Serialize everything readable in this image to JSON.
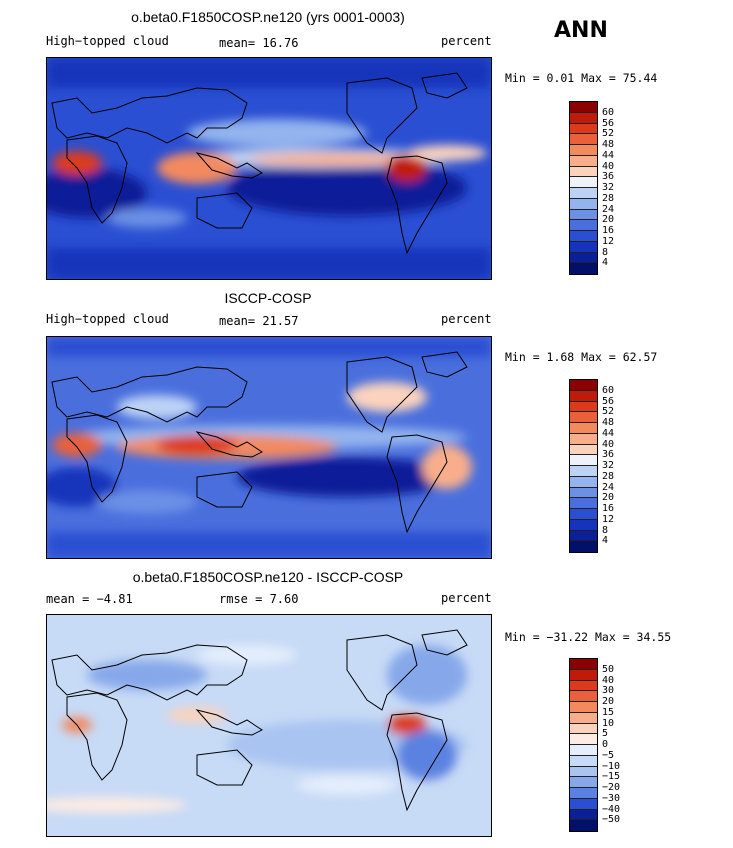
{
  "season": "ANN",
  "units": "percent",
  "panels": [
    {
      "title": "o.beta0.F1850COSP.ne120 (yrs 0001-0003)",
      "left_label": "High−topped cloud",
      "mean_text": "mean=  16.76",
      "right_label": "percent",
      "minmax_text": "Min =    0.01 Max =  75.44",
      "levels": [
        "60",
        "56",
        "52",
        "48",
        "44",
        "40",
        "36",
        "32",
        "28",
        "24",
        "20",
        "16",
        "12",
        "8",
        "4"
      ],
      "colors": [
        "#8b0000",
        "#c01b0a",
        "#dc3a1a",
        "#e9603a",
        "#f38a5e",
        "#f8ae8b",
        "#fbd3bd",
        "#eef2fb",
        "#bdd3f5",
        "#93b4ee",
        "#6b90e6",
        "#4a6fdd",
        "#2b4fd2",
        "#1634bb",
        "#0a1f98",
        "#03106a"
      ]
    },
    {
      "title": "ISCCP-COSP",
      "left_label": "High−topped cloud",
      "mean_text": "mean=  21.57",
      "right_label": "percent",
      "minmax_text": "Min =    1.68 Max =  62.57",
      "levels": [
        "60",
        "56",
        "52",
        "48",
        "44",
        "40",
        "36",
        "32",
        "28",
        "24",
        "20",
        "16",
        "12",
        "8",
        "4"
      ],
      "colors": [
        "#8b0000",
        "#c01b0a",
        "#dc3a1a",
        "#e9603a",
        "#f38a5e",
        "#f8ae8b",
        "#fbd3bd",
        "#eef2fb",
        "#bdd3f5",
        "#93b4ee",
        "#6b90e6",
        "#4a6fdd",
        "#2b4fd2",
        "#1634bb",
        "#0a1f98",
        "#03106a"
      ]
    },
    {
      "title": "o.beta0.F1850COSP.ne120 - ISCCP-COSP",
      "left_label": "mean =   −4.81",
      "mean_text": "rmse =    7.60",
      "right_label": "percent",
      "minmax_text": "Min = −31.22 Max =  34.55",
      "levels": [
        "50",
        "40",
        "30",
        "20",
        "15",
        "10",
        "5",
        "0",
        "−5",
        "−10",
        "−15",
        "−20",
        "−30",
        "−40",
        "−50"
      ],
      "colors": [
        "#8b0000",
        "#c01b0a",
        "#dc3a1a",
        "#e9603a",
        "#f38a5e",
        "#f8ae8b",
        "#fbd3bd",
        "#fdece3",
        "#e4eefc",
        "#c7daf6",
        "#a9c4f1",
        "#86a8ea",
        "#5c82e1",
        "#2b4fd2",
        "#0a1f98",
        "#03106a"
      ]
    }
  ]
}
